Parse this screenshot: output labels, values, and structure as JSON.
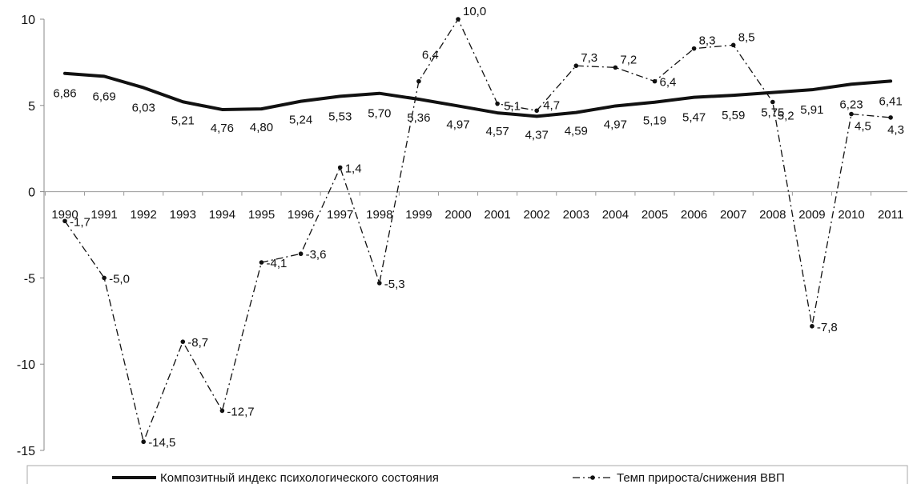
{
  "chart_data": {
    "type": "line",
    "categories": [
      "1990",
      "1991",
      "1992",
      "1993",
      "1994",
      "1995",
      "1996",
      "1997",
      "1998",
      "1999",
      "2000",
      "2001",
      "2002",
      "2003",
      "2004",
      "2005",
      "2006",
      "2007",
      "2008",
      "2009",
      "2010",
      "2011"
    ],
    "ylim": [
      -15,
      10
    ],
    "yticks": [
      "10",
      "5",
      "0",
      "-5",
      "-10",
      "-15"
    ],
    "title": "",
    "xlabel": "",
    "ylabel": "",
    "grid": false,
    "legend_position": "bottom",
    "series": [
      {
        "name": "Композитный индекс психологического состояния",
        "style": "solid-thick",
        "color": "#111111",
        "values": [
          6.86,
          6.69,
          6.03,
          5.21,
          4.76,
          4.8,
          5.24,
          5.53,
          5.7,
          5.36,
          4.97,
          4.57,
          4.37,
          4.59,
          4.97,
          5.19,
          5.47,
          5.59,
          5.75,
          5.91,
          6.23,
          6.41
        ],
        "labels": [
          "6,86",
          "6,69",
          "6,03",
          "5,21",
          "4,76",
          "4,80",
          "5,24",
          "5,53",
          "5,70",
          "5,36",
          "4,97",
          "4,57",
          "4,37",
          "4,59",
          "4,97",
          "5,19",
          "5,47",
          "5,59",
          "5,75",
          "5,91",
          "6,23",
          "6,41"
        ]
      },
      {
        "name": "Темп прироста/снижения ВВП",
        "style": "dash-dot-markers",
        "color": "#111111",
        "values": [
          -1.7,
          -5.0,
          -14.5,
          -8.7,
          -12.7,
          -4.1,
          -3.6,
          1.4,
          -5.3,
          6.4,
          10.0,
          5.1,
          4.7,
          7.3,
          7.2,
          6.4,
          8.3,
          8.5,
          5.2,
          -7.8,
          4.5,
          4.3
        ],
        "labels": [
          "-1,7",
          "-5,0",
          "-14,5",
          "-8,7",
          "-12,7",
          "-4,1",
          "-3,6",
          "1,4",
          "-5,3",
          "6,4",
          "10,0",
          "5,1",
          "4,7",
          "7,3",
          "7,2",
          "6,4",
          "8,3",
          "8,5",
          "5,2",
          "-7,8",
          "4,5",
          "4,3"
        ]
      }
    ]
  }
}
